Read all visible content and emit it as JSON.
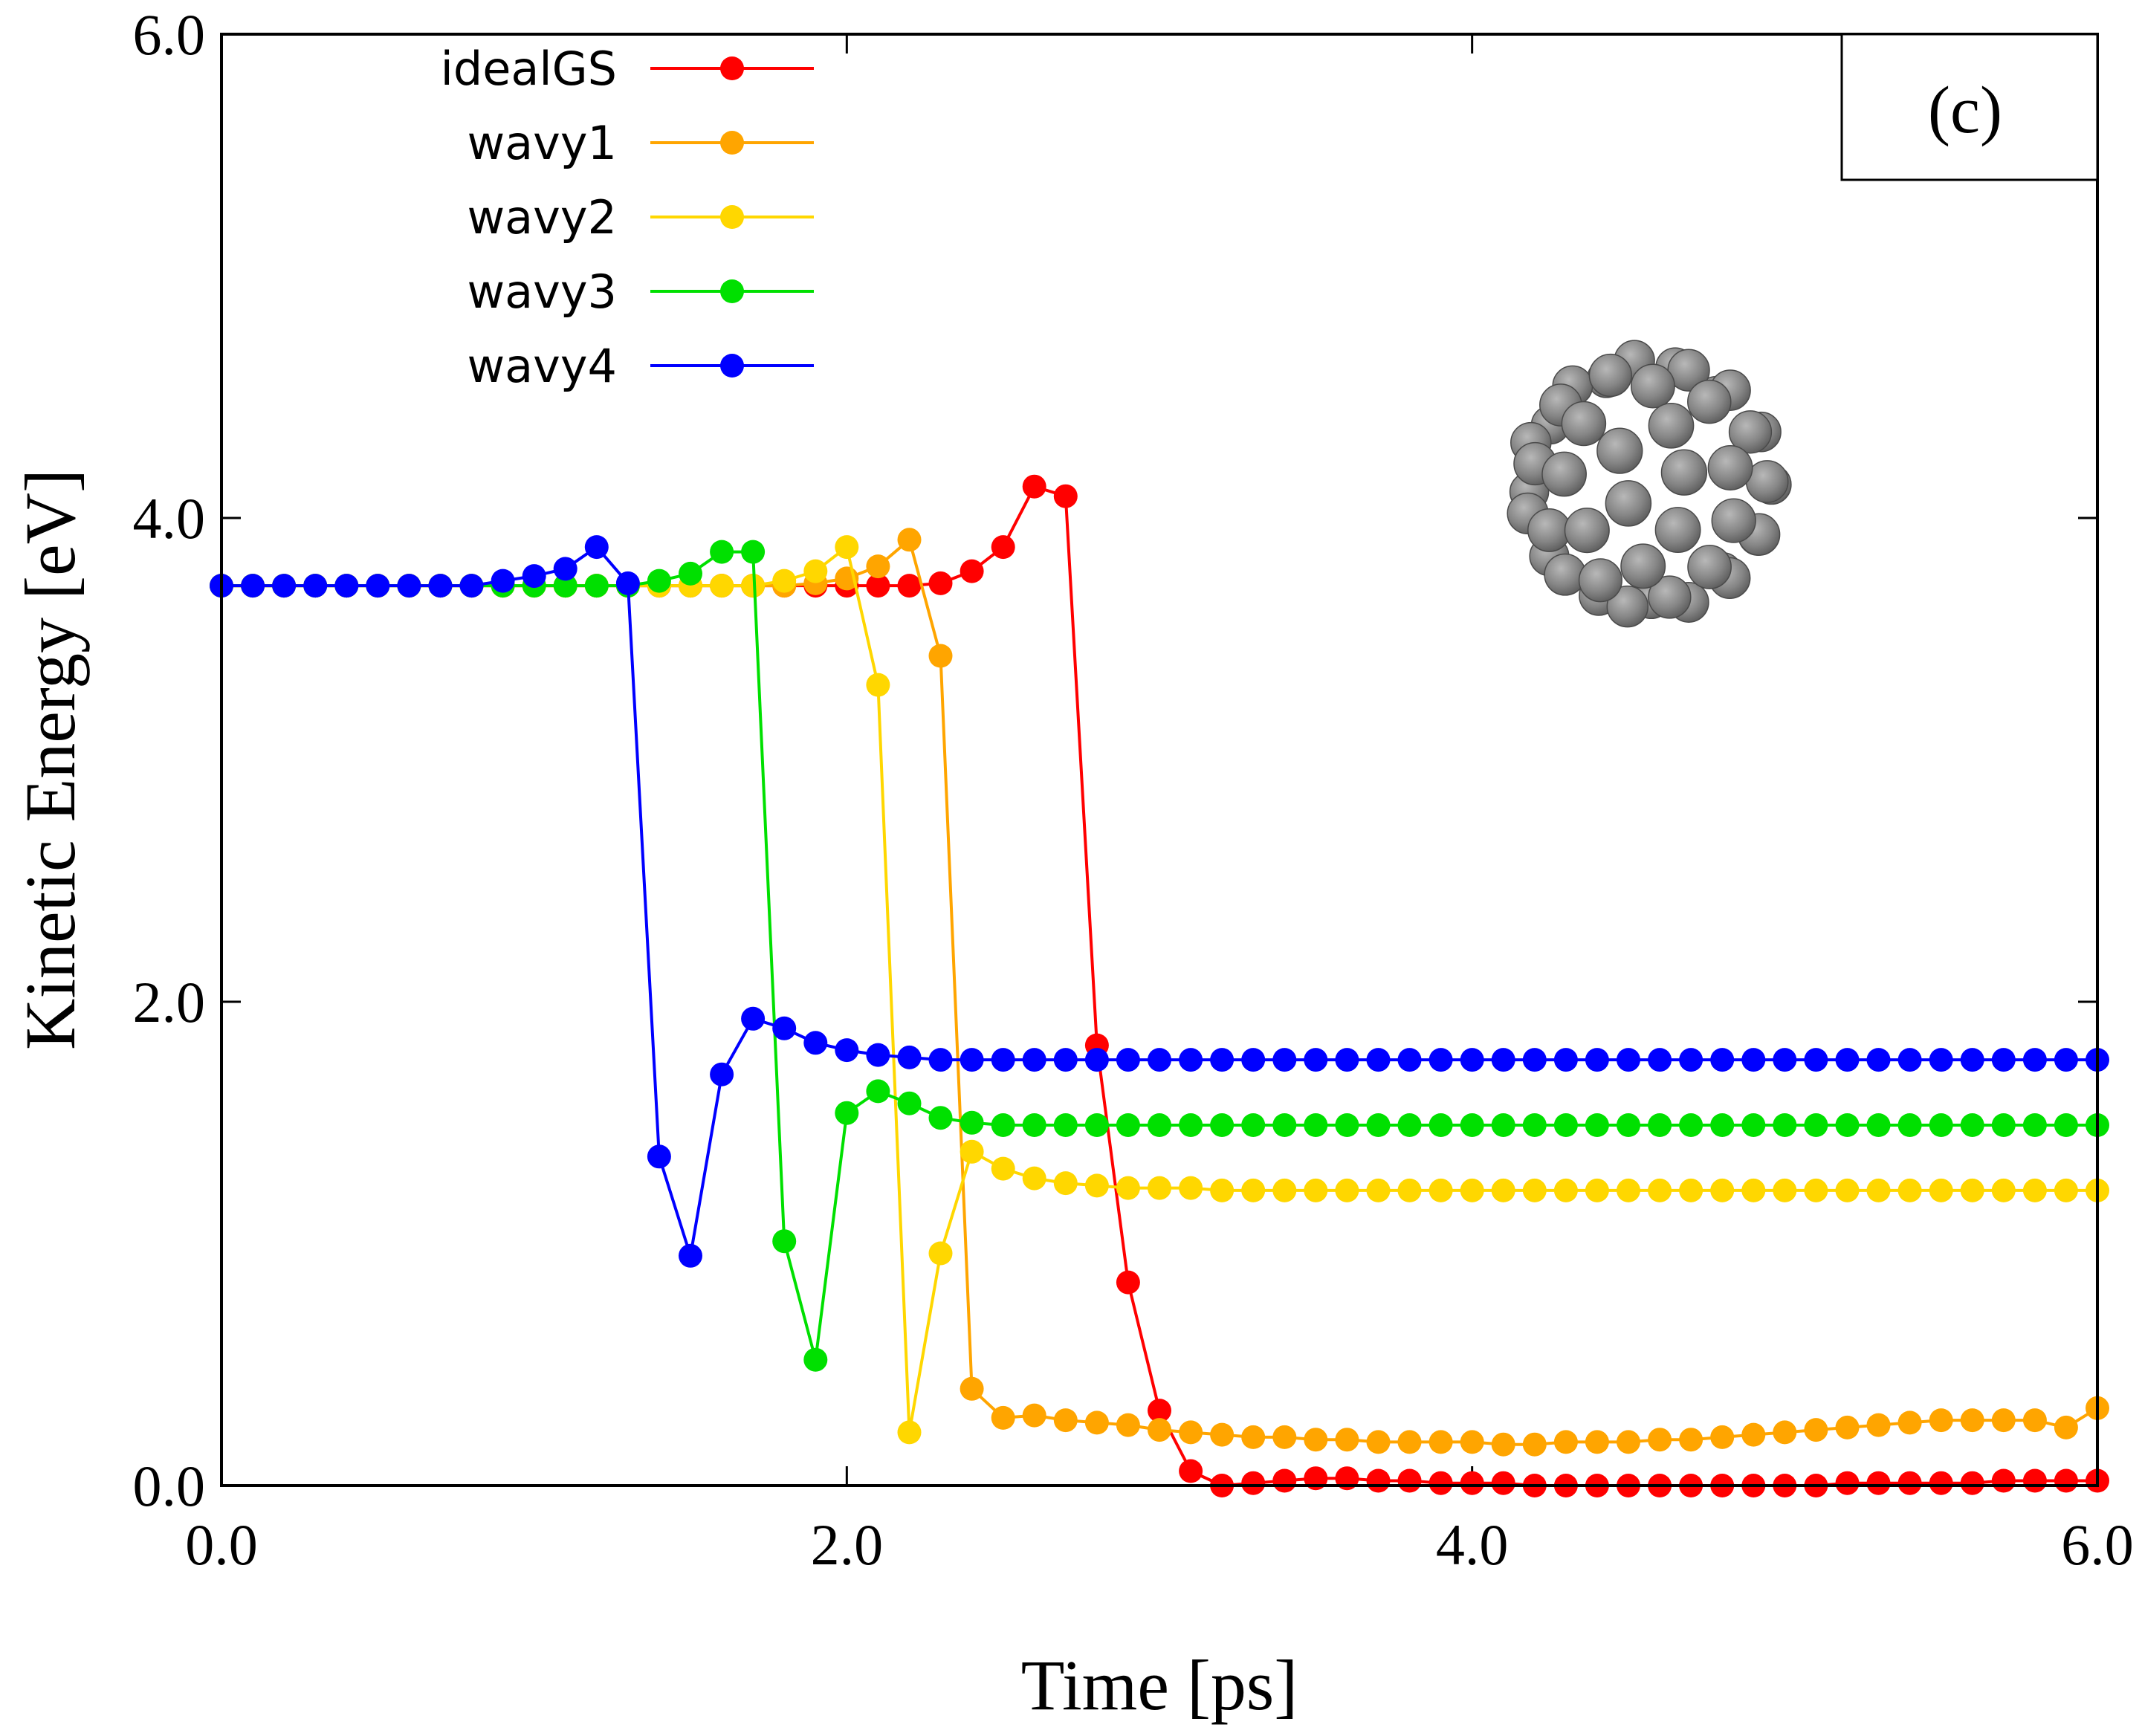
{
  "chart_data": {
    "type": "line",
    "title": "",
    "panel_label": "(c)",
    "xlabel": "Time [ps]",
    "ylabel": "Kinetic Energy [eV]",
    "xlim": [
      0.0,
      6.0
    ],
    "ylim": [
      0.0,
      6.0
    ],
    "xticks": [
      0.0,
      2.0,
      4.0,
      6.0
    ],
    "yticks": [
      0.0,
      2.0,
      4.0,
      6.0
    ],
    "xtick_labels": [
      "0.0",
      "2.0",
      "4.0",
      "6.0"
    ],
    "ytick_labels": [
      "0.0",
      "2.0",
      "4.0",
      "6.0"
    ],
    "grid": false,
    "legend_position": "top-left",
    "inset": "C60 fullerene molecule",
    "x": [
      0.0,
      0.1,
      0.2,
      0.3,
      0.4,
      0.5,
      0.6,
      0.7,
      0.8,
      0.9,
      1.0,
      1.1,
      1.2,
      1.3,
      1.4,
      1.5,
      1.6,
      1.7,
      1.8,
      1.9,
      2.0,
      2.1,
      2.2,
      2.3,
      2.4,
      2.5,
      2.6,
      2.7,
      2.8,
      2.9,
      3.0,
      3.1,
      3.2,
      3.3,
      3.4,
      3.5,
      3.6,
      3.7,
      3.8,
      3.9,
      4.0,
      4.1,
      4.2,
      4.3,
      4.4,
      4.5,
      4.6,
      4.7,
      4.8,
      4.9,
      5.0,
      5.1,
      5.2,
      5.3,
      5.4,
      5.5,
      5.6,
      5.7,
      5.8,
      5.9,
      6.0
    ],
    "series": [
      {
        "name": "idealGS",
        "color": "#ff0000",
        "values": [
          3.72,
          3.72,
          3.72,
          3.72,
          3.72,
          3.72,
          3.72,
          3.72,
          3.72,
          3.72,
          3.72,
          3.72,
          3.72,
          3.72,
          3.72,
          3.72,
          3.72,
          3.72,
          3.72,
          3.72,
          3.72,
          3.72,
          3.72,
          3.73,
          3.78,
          3.88,
          4.13,
          4.09,
          1.82,
          0.84,
          0.31,
          0.06,
          0.0,
          0.01,
          0.02,
          0.03,
          0.03,
          0.02,
          0.02,
          0.01,
          0.01,
          0.01,
          0.0,
          0.0,
          0.0,
          0.0,
          0.0,
          0.0,
          0.0,
          0.0,
          0.0,
          0.0,
          0.01,
          0.01,
          0.01,
          0.01,
          0.01,
          0.02,
          0.02,
          0.02,
          0.02
        ]
      },
      {
        "name": "wavy1",
        "color": "#ffa500",
        "values": [
          3.72,
          3.72,
          3.72,
          3.72,
          3.72,
          3.72,
          3.72,
          3.72,
          3.72,
          3.72,
          3.72,
          3.72,
          3.72,
          3.72,
          3.72,
          3.72,
          3.72,
          3.72,
          3.72,
          3.73,
          3.75,
          3.8,
          3.91,
          3.43,
          0.4,
          0.28,
          0.29,
          0.27,
          0.26,
          0.25,
          0.23,
          0.22,
          0.21,
          0.2,
          0.2,
          0.19,
          0.19,
          0.18,
          0.18,
          0.18,
          0.18,
          0.17,
          0.17,
          0.18,
          0.18,
          0.18,
          0.19,
          0.19,
          0.2,
          0.21,
          0.22,
          0.23,
          0.24,
          0.25,
          0.26,
          0.27,
          0.27,
          0.27,
          0.27,
          0.24,
          0.32
        ]
      },
      {
        "name": "wavy2",
        "color": "#ffd700",
        "values": [
          3.72,
          3.72,
          3.72,
          3.72,
          3.72,
          3.72,
          3.72,
          3.72,
          3.72,
          3.72,
          3.72,
          3.72,
          3.72,
          3.72,
          3.72,
          3.72,
          3.72,
          3.72,
          3.74,
          3.78,
          3.88,
          3.31,
          0.22,
          0.96,
          1.38,
          1.31,
          1.27,
          1.25,
          1.24,
          1.23,
          1.23,
          1.23,
          1.22,
          1.22,
          1.22,
          1.22,
          1.22,
          1.22,
          1.22,
          1.22,
          1.22,
          1.22,
          1.22,
          1.22,
          1.22,
          1.22,
          1.22,
          1.22,
          1.22,
          1.22,
          1.22,
          1.22,
          1.22,
          1.22,
          1.22,
          1.22,
          1.22,
          1.22,
          1.22,
          1.22,
          1.22
        ]
      },
      {
        "name": "wavy3",
        "color": "#00e000",
        "values": [
          3.72,
          3.72,
          3.72,
          3.72,
          3.72,
          3.72,
          3.72,
          3.72,
          3.72,
          3.72,
          3.72,
          3.72,
          3.72,
          3.72,
          3.74,
          3.77,
          3.86,
          3.86,
          1.01,
          0.52,
          1.54,
          1.63,
          1.58,
          1.52,
          1.5,
          1.49,
          1.49,
          1.49,
          1.49,
          1.49,
          1.49,
          1.49,
          1.49,
          1.49,
          1.49,
          1.49,
          1.49,
          1.49,
          1.49,
          1.49,
          1.49,
          1.49,
          1.49,
          1.49,
          1.49,
          1.49,
          1.49,
          1.49,
          1.49,
          1.49,
          1.49,
          1.49,
          1.49,
          1.49,
          1.49,
          1.49,
          1.49,
          1.49,
          1.49,
          1.49,
          1.49
        ]
      },
      {
        "name": "wavy4",
        "color": "#0000ff",
        "values": [
          3.72,
          3.72,
          3.72,
          3.72,
          3.72,
          3.72,
          3.72,
          3.72,
          3.72,
          3.74,
          3.76,
          3.79,
          3.88,
          3.73,
          1.36,
          0.95,
          1.7,
          1.93,
          1.89,
          1.83,
          1.8,
          1.78,
          1.77,
          1.76,
          1.76,
          1.76,
          1.76,
          1.76,
          1.76,
          1.76,
          1.76,
          1.76,
          1.76,
          1.76,
          1.76,
          1.76,
          1.76,
          1.76,
          1.76,
          1.76,
          1.76,
          1.76,
          1.76,
          1.76,
          1.76,
          1.76,
          1.76,
          1.76,
          1.76,
          1.76,
          1.76,
          1.76,
          1.76,
          1.76,
          1.76,
          1.76,
          1.76,
          1.76,
          1.76,
          1.76,
          1.76
        ]
      }
    ]
  }
}
